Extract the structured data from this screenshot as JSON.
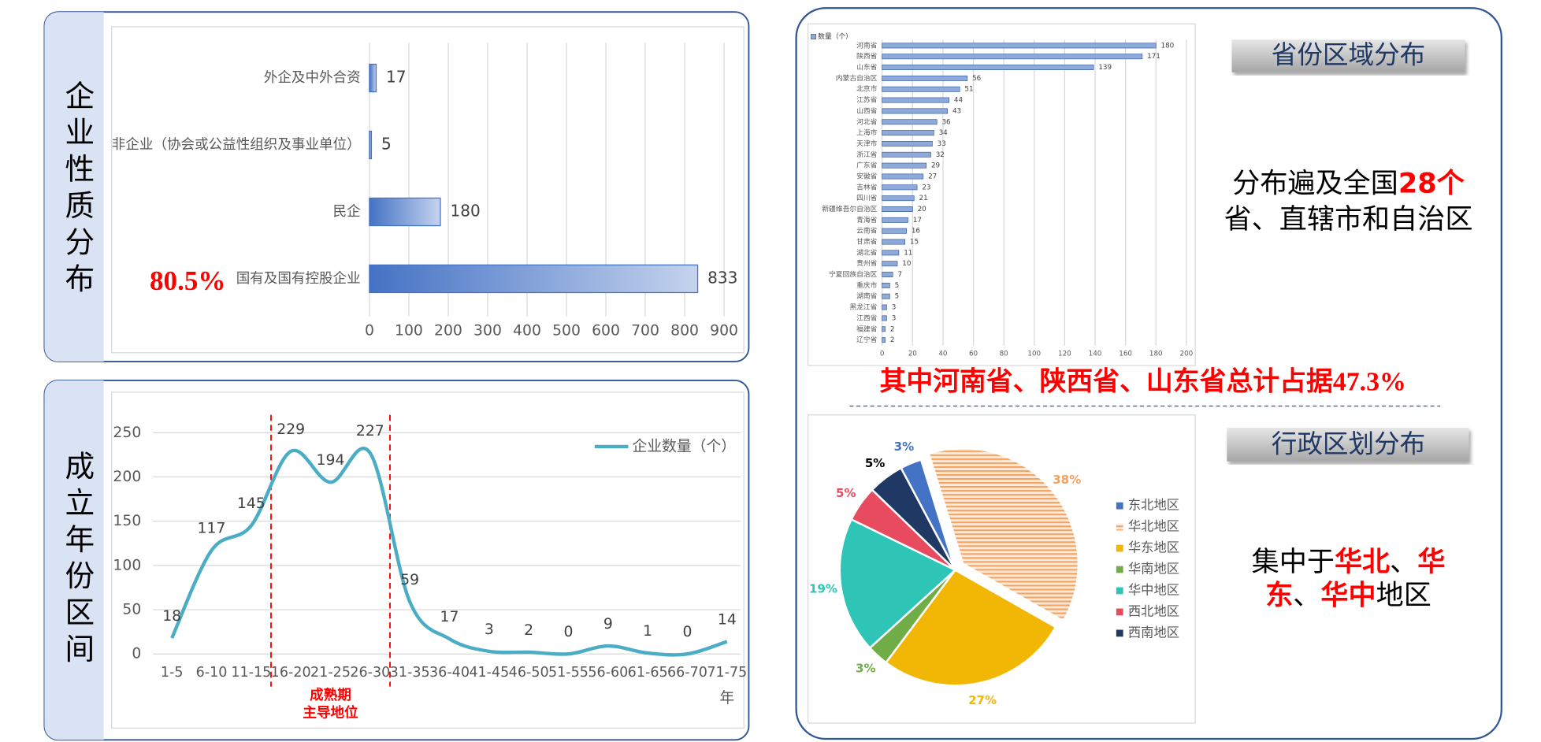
{
  "chart_data": [
    {
      "type": "hbar",
      "side_title": "企业性质分布",
      "highlight": "80.5%",
      "categories": [
        "外企及中外合资",
        "非企业（协会或公益性组织及事业单位）",
        "民企",
        "国有及国有控股企业"
      ],
      "values": [
        17,
        5,
        180,
        833
      ],
      "color": "#4472c4",
      "xlim": [
        0,
        900
      ],
      "xticks": [
        0,
        100,
        200,
        300,
        400,
        500,
        600,
        700,
        800,
        900
      ],
      "grid": true
    },
    {
      "type": "line",
      "side_title": "成立年份区间",
      "categories": [
        "1-5",
        "6-10",
        "11-15",
        "16-20",
        "21-25",
        "26-30",
        "31-35",
        "36-40",
        "41-45",
        "46-50",
        "51-55",
        "56-60",
        "61-65",
        "66-70",
        "71-75"
      ],
      "x_unit": "年",
      "series": [
        {
          "name": "企业数量（个）",
          "color": "#4bacc6",
          "values": [
            18,
            117,
            145,
            229,
            194,
            227,
            59,
            17,
            3,
            2,
            0,
            9,
            1,
            0,
            14
          ]
        }
      ],
      "annotation": [
        "成熟期",
        "主导地位"
      ],
      "ylim": [
        0,
        250
      ],
      "yticks": [
        0,
        50,
        100,
        150,
        200,
        250
      ],
      "grid": true
    },
    {
      "type": "hbar",
      "categories": [
        "河南省",
        "陕西省",
        "山东省",
        "内蒙古自治区",
        "北京市",
        "江苏省",
        "山西省",
        "河北省",
        "上海市",
        "天津市",
        "浙江省",
        "广东省",
        "安徽省",
        "吉林省",
        "四川省",
        "新疆维吾尔自治区",
        "青海省",
        "云南省",
        "甘肃省",
        "湖北省",
        "贵州省",
        "宁夏回族自治区",
        "重庆市",
        "湖南省",
        "黑龙江省",
        "江西省",
        "福建省",
        "辽宁省"
      ],
      "series": [
        {
          "name": "数量（个）",
          "color": "#8eaadb",
          "values": [
            180,
            171,
            139,
            56,
            51,
            44,
            43,
            36,
            34,
            33,
            32,
            29,
            27,
            23,
            21,
            20,
            17,
            16,
            15,
            11,
            10,
            7,
            5,
            5,
            3,
            3,
            2,
            2
          ]
        }
      ],
      "xlim": [
        0,
        200
      ],
      "xticks": [
        0,
        20,
        40,
        60,
        80,
        100,
        120,
        140,
        160,
        180,
        200
      ],
      "grid": true
    },
    {
      "type": "pie",
      "categories": [
        "东北地区",
        "华北地区",
        "华东地区",
        "华南地区",
        "华中地区",
        "西北地区",
        "西南地区"
      ],
      "values": [
        3,
        38,
        27,
        3,
        19,
        5,
        5
      ],
      "value_labels": [
        "3%",
        "38%",
        "27%",
        "3%",
        "19%",
        "5%",
        "5%"
      ],
      "colors": [
        "#4472c4",
        "#f4a15d",
        "#f2b705",
        "#70ad47",
        "#2ec4b6",
        "#e84a5f",
        "#203864"
      ],
      "hatch": [
        false,
        true,
        false,
        false,
        false,
        false,
        false
      ]
    }
  ],
  "text": {
    "province_heading": "省份区域分布",
    "province_note": [
      [
        {
          "text": "分布遍及全国",
          "color": "#000000"
        },
        {
          "text": "28个",
          "color": "#ff0000"
        }
      ],
      [
        {
          "text": "省、直辖市和自治区",
          "color": "#000000"
        }
      ]
    ],
    "summary": "其中河南省、陕西省、山东省总计占据47.3%",
    "region_heading": "行政区划分布",
    "region_note": [
      [
        {
          "text": "集中于",
          "color": "#000000"
        },
        {
          "text": "华北",
          "color": "#ff0000"
        },
        {
          "text": "、",
          "color": "#000000"
        },
        {
          "text": "华",
          "color": "#ff0000"
        }
      ],
      [
        {
          "text": "东",
          "color": "#ff0000"
        },
        {
          "text": "、",
          "color": "#000000"
        },
        {
          "text": "华中",
          "color": "#ff0000"
        },
        {
          "text": "地区",
          "color": "#000000"
        }
      ]
    ]
  }
}
